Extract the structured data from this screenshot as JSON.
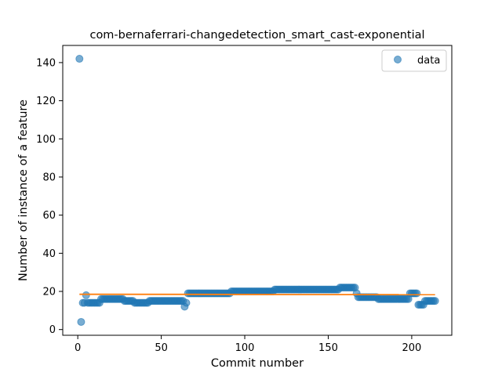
{
  "chart_data": {
    "type": "scatter",
    "title": "com-bernaferrari-changedetection_smart_cast-exponential",
    "xlabel": "Commit number",
    "ylabel": "Number of instance of a feature",
    "xlim": [
      -9,
      224
    ],
    "ylim": [
      -3,
      149
    ],
    "xticks": [
      0,
      50,
      100,
      150,
      200
    ],
    "yticks": [
      0,
      20,
      40,
      60,
      80,
      100,
      120,
      140
    ],
    "grid": false,
    "legend": {
      "position": "top-right",
      "entries": [
        "data"
      ]
    },
    "colors": {
      "points": "#1f77b4",
      "fit": "#ff7f0e"
    },
    "series": [
      {
        "name": "data",
        "kind": "points",
        "segments": [
          {
            "x": [
              1
            ],
            "y": 142
          },
          {
            "x": [
              2
            ],
            "y": 4
          },
          {
            "x": [
              3,
              4
            ],
            "y": 14
          },
          {
            "x": [
              5
            ],
            "y": 18
          },
          {
            "x": [
              6,
              13
            ],
            "y": 14
          },
          {
            "x": [
              14,
              27
            ],
            "y": 16
          },
          {
            "x": [
              28,
              33
            ],
            "y": 15
          },
          {
            "x": [
              34,
              42
            ],
            "y": 14
          },
          {
            "x": [
              43,
              63
            ],
            "y": 15
          },
          {
            "x": [
              64
            ],
            "y": 12
          },
          {
            "x": [
              65
            ],
            "y": 14
          },
          {
            "x": [
              66,
              91
            ],
            "y": 19
          },
          {
            "x": [
              92,
              117
            ],
            "y": 20
          },
          {
            "x": [
              118,
              156
            ],
            "y": 21
          },
          {
            "x": [
              157,
              166
            ],
            "y": 22
          },
          {
            "x": [
              167
            ],
            "y": 19
          },
          {
            "x": [
              168,
              179
            ],
            "y": 17
          },
          {
            "x": [
              180,
              198
            ],
            "y": 16
          },
          {
            "x": [
              199,
              203
            ],
            "y": 19
          },
          {
            "x": [
              204,
              207
            ],
            "y": 13
          },
          {
            "x": [
              208,
              214
            ],
            "y": 15
          }
        ]
      },
      {
        "name": "fit",
        "kind": "line",
        "x": [
          1,
          214
        ],
        "y": [
          18.5,
          18.3
        ]
      }
    ]
  }
}
